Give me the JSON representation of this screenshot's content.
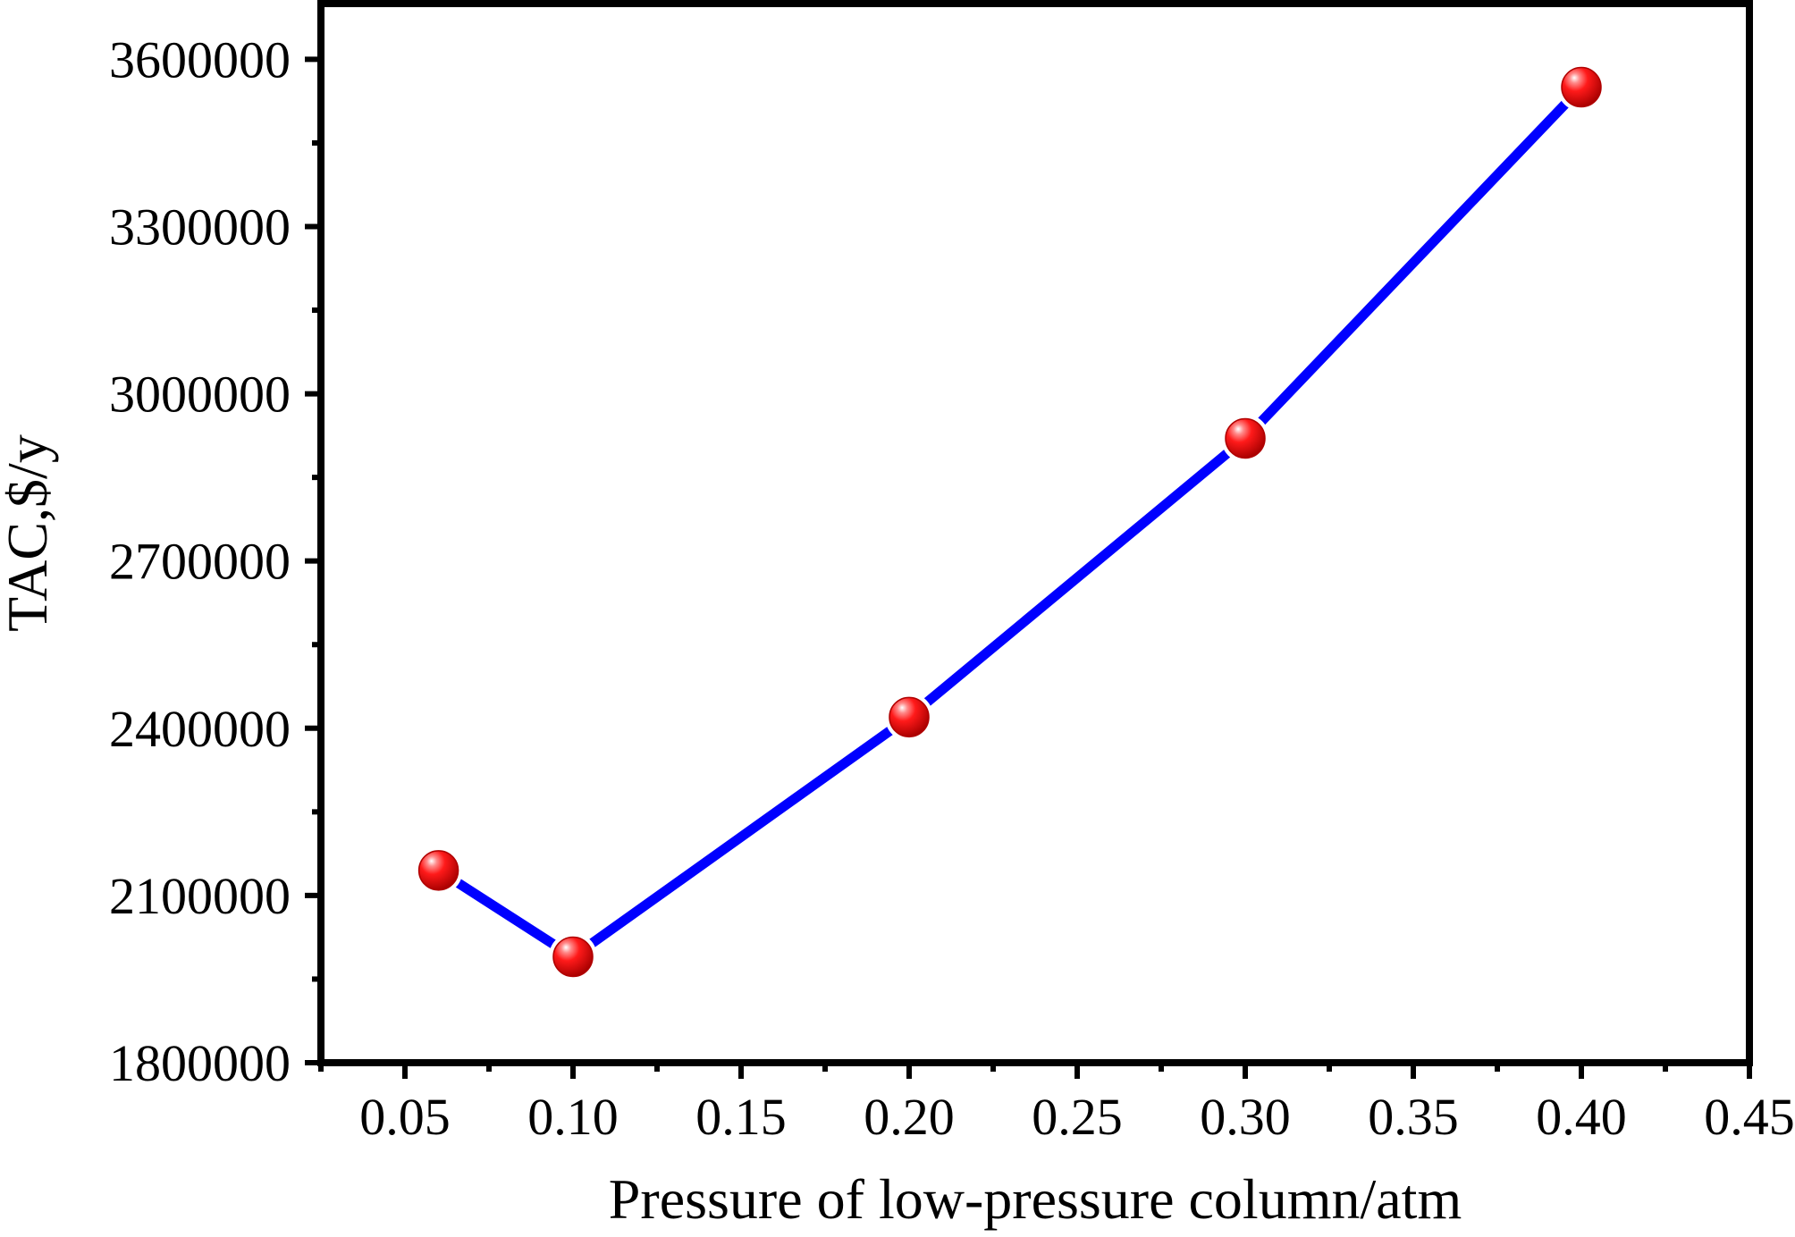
{
  "chart_data": {
    "type": "line",
    "title": "",
    "xlabel": "Pressure of low-pressure column/atm",
    "ylabel": "TAC,$/y",
    "xlim": [
      0.025,
      0.45
    ],
    "ylim": [
      1800000,
      3700000
    ],
    "x_ticks": [
      0.05,
      0.1,
      0.15,
      0.2,
      0.25,
      0.3,
      0.35,
      0.4,
      0.45
    ],
    "x_tick_labels": [
      "0.05",
      "0.10",
      "0.15",
      "0.20",
      "0.25",
      "0.30",
      "0.35",
      "0.40",
      "0.45"
    ],
    "y_ticks": [
      1800000,
      2100000,
      2400000,
      2700000,
      3000000,
      3300000,
      3600000
    ],
    "y_tick_labels": [
      "1800000",
      "2100000",
      "2400000",
      "2700000",
      "3000000",
      "3300000",
      "3600000"
    ],
    "grid": false,
    "legend": "none",
    "series": [
      {
        "x": [
          0.06,
          0.1,
          0.2,
          0.3,
          0.4
        ],
        "y": [
          2145000,
          1990000,
          2420000,
          2920000,
          3550000
        ],
        "line_color": "#0000ff",
        "marker_color": "#ff0000"
      }
    ]
  }
}
